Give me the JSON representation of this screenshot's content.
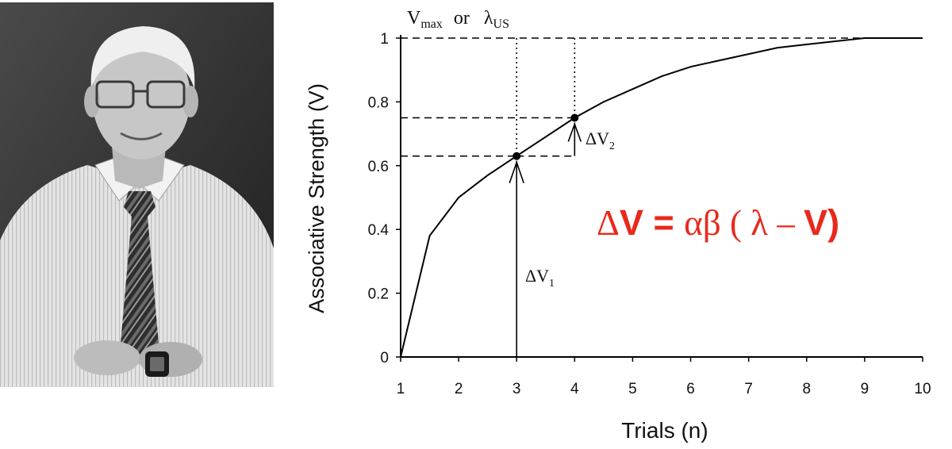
{
  "portrait": {
    "description_icon": "portrait-photo"
  },
  "chart_data": {
    "type": "line",
    "xlabel": "Trials (n)",
    "ylabel": "Associative Strength (V)",
    "x_ticks": [
      "1",
      "2",
      "3",
      "4",
      "5",
      "6",
      "7",
      "8",
      "9",
      "10"
    ],
    "y_ticks": [
      "0",
      "0.2",
      "0.4",
      "0.6",
      "0.8",
      "1"
    ],
    "xlim": [
      1,
      10
    ],
    "ylim": [
      0,
      1
    ],
    "grid": false,
    "series": [
      {
        "x": [
          1,
          1.5,
          2,
          2.5,
          3,
          3.5,
          4,
          4.5,
          5,
          5.5,
          6,
          6.5,
          7,
          7.5,
          8,
          8.5,
          9,
          9.5,
          9.8
        ],
        "y": [
          0,
          0.38,
          0.5,
          0.57,
          0.63,
          0.69,
          0.75,
          0.8,
          0.84,
          0.88,
          0.91,
          0.93,
          0.95,
          0.97,
          0.98,
          0.99,
          1,
          1,
          1
        ]
      }
    ],
    "points": [
      {
        "x": 3,
        "y": 0.63
      },
      {
        "x": 4,
        "y": 0.75
      }
    ],
    "asymptote": 1,
    "top_label": {
      "v": "V",
      "v_sub": "max",
      "or": "or",
      "lambda": "λ",
      "lambda_sub": "US"
    },
    "annotations": {
      "dv1": {
        "main": "ΔV",
        "sub": "1"
      },
      "dv2": {
        "main": "ΔV",
        "sub": "2"
      }
    },
    "equation": {
      "delta": "Δ",
      "v": "V",
      "eq": " = ",
      "alphabeta": "αβ",
      "open": " ( ",
      "lambda": "λ",
      "minus": " – ",
      "v2": "V",
      "close": ")"
    },
    "colors": {
      "line": "#000000",
      "equation": "#e8291c"
    }
  }
}
